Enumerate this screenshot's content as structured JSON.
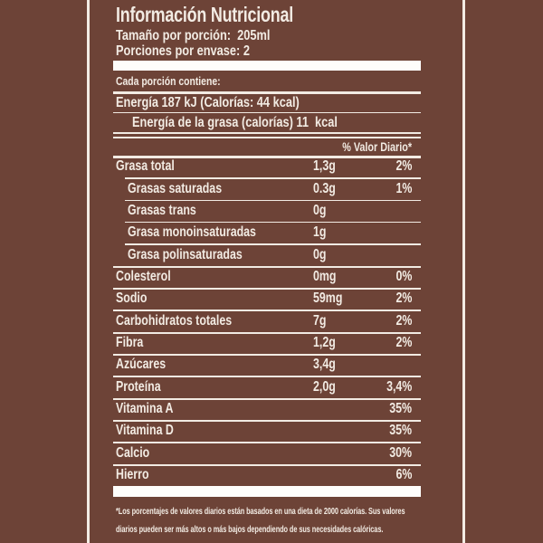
{
  "colors": {
    "background": "#6d4337",
    "ink": "#f2ebe3",
    "bar": "#fefdfb"
  },
  "header": {
    "title": "Información Nutricional",
    "serving_size": "Tamaño por porción:  205ml",
    "servings_per_container": "Porciones por envase: 2"
  },
  "contains_label": "Cada porción contiene:",
  "energy": {
    "line1": "Energía 187 kJ (Calorías: 44 kcal)",
    "line2": "Energía de la grasa (calorías) 11  kcal"
  },
  "daily_value_header": "% Valor Diario*",
  "table": {
    "rows": [
      {
        "label": "Grasa total",
        "amount": "1,3g",
        "dv": "2%"
      },
      {
        "label": "Grasas saturadas",
        "amount": "0.3g",
        "dv": "1%"
      },
      {
        "label": "Grasas trans",
        "amount": "0g",
        "dv": ""
      },
      {
        "label": "Grasa monoinsaturadas",
        "amount": "1g",
        "dv": ""
      },
      {
        "label": "Grasa polinsaturadas",
        "amount": "0g",
        "dv": ""
      },
      {
        "label": "Colesterol",
        "amount": "0mg",
        "dv": "0%"
      },
      {
        "label": "Sodio",
        "amount": "59mg",
        "dv": "2%"
      },
      {
        "label": "Carbohidratos totales",
        "amount": "7g",
        "dv": "2%"
      },
      {
        "label": "Fibra",
        "amount": "1,2g",
        "dv": "2%"
      },
      {
        "label": "Azúcares",
        "amount": "3,4g",
        "dv": ""
      },
      {
        "label": "Proteína",
        "amount": "2,0g",
        "dv": "3,4%"
      },
      {
        "label": "Vitamina A",
        "amount": "",
        "dv": "35%"
      },
      {
        "label": "Vitamina D",
        "amount": "",
        "dv": "35%"
      },
      {
        "label": "Calcio",
        "amount": "",
        "dv": "30%"
      },
      {
        "label": "Hierro",
        "amount": "",
        "dv": "6%"
      }
    ]
  },
  "footnote": "*Los porcentajes de valores diarios están basados en una dieta de 2000 calorías. Sus valores diarios pueden ser más altos o más bajos dependiendo de sus necesidades calóricas."
}
